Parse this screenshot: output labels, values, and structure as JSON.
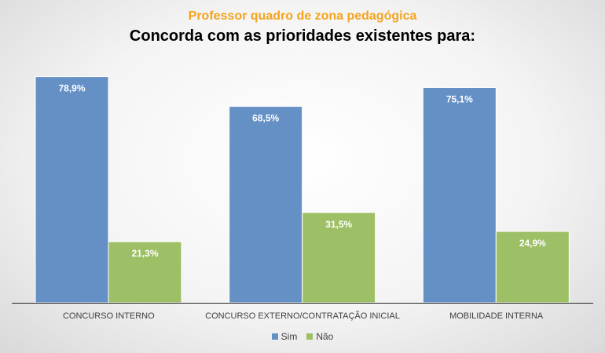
{
  "chart_data": {
    "type": "bar",
    "subtitle": "Professor quadro de zona pedagógica",
    "title": "Concorda com as prioridades existentes para:",
    "categories": [
      "CONCURSO INTERNO",
      "CONCURSO EXTERNO/CONTRATAÇÃO INICIAL",
      "MOBILIDADE INTERNA"
    ],
    "series": [
      {
        "name": "Sim",
        "values": [
          78.9,
          68.5,
          75.1
        ],
        "labels": [
          "78,9%",
          "68,5%",
          "75,1%"
        ],
        "color": "#6590C6"
      },
      {
        "name": "Não",
        "values": [
          21.3,
          31.5,
          24.9
        ],
        "labels": [
          "21,3%",
          "31,5%",
          "24,9%"
        ],
        "color": "#9DBF65"
      }
    ],
    "ylim": [
      0,
      100
    ],
    "grid": false,
    "legend": "bottom"
  }
}
